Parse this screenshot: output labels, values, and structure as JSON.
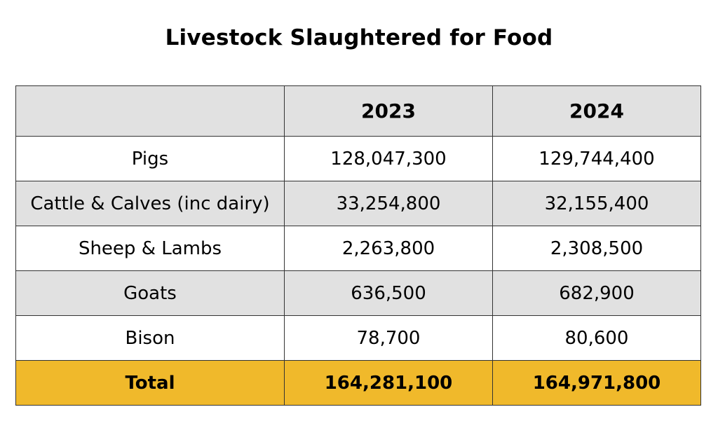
{
  "chart_data": {
    "type": "table",
    "title": "Livestock Slaughtered for Food",
    "columns": [
      "",
      "2023",
      "2024"
    ],
    "rows": [
      {
        "label": "Pigs",
        "values": [
          "128,047,300",
          "129,744,400"
        ]
      },
      {
        "label": "Cattle & Calves (inc dairy)",
        "values": [
          "33,254,800",
          "32,155,400"
        ]
      },
      {
        "label": "Sheep & Lambs",
        "values": [
          "2,263,800",
          "2,308,500"
        ]
      },
      {
        "label": "Goats",
        "values": [
          "636,500",
          "682,900"
        ]
      },
      {
        "label": "Bison",
        "values": [
          "78,700",
          "80,600"
        ]
      }
    ],
    "total": {
      "label": "Total",
      "values": [
        "164,281,100",
        "164,971,800"
      ]
    }
  },
  "colors": {
    "header_bg": "#e1e1e1",
    "row_alt_bg": "#e1e1e1",
    "row_bg": "#ffffff",
    "total_bg": "#f0b92b",
    "border": "#333333"
  }
}
